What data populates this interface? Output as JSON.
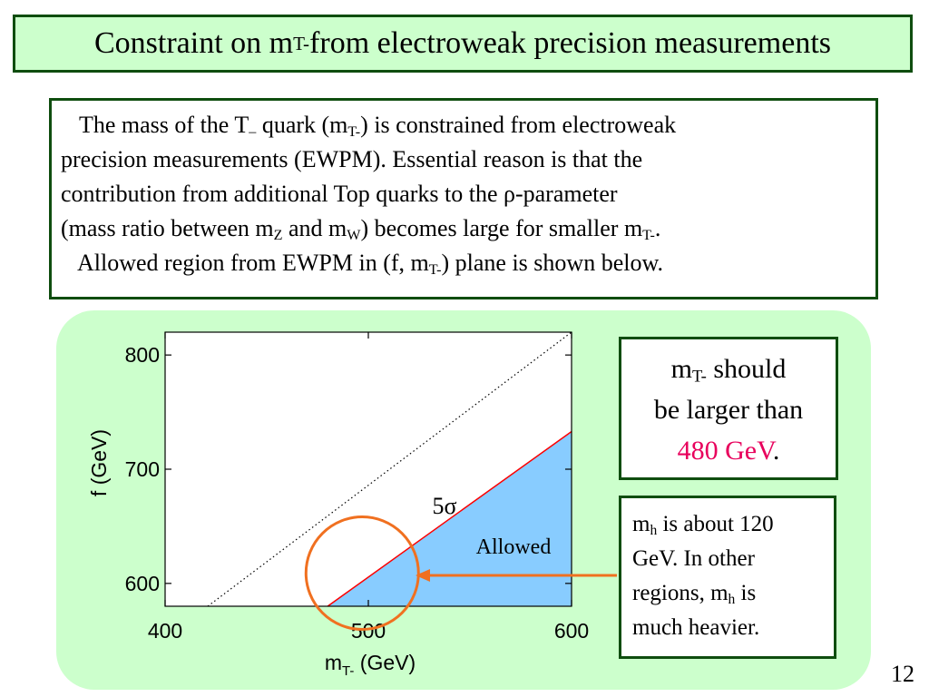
{
  "slide": {
    "title": {
      "pre": "Constraint on m",
      "sub": "T-",
      "post": " from electroweak precision measurements"
    },
    "intro": {
      "l1_a": "The mass of the T",
      "l1_sub1": "–",
      "l1_b": " quark (m",
      "l1_sub2": "T-",
      "l1_c": ") is constrained from electroweak",
      "l2": "precision measurements (EWPM). Essential reason is that the",
      "l3": "contribution from additional Top quarks to the ρ-parameter",
      "l4_a": "(mass ratio between m",
      "l4_sub1": "Z",
      "l4_b": " and m",
      "l4_sub2": "W",
      "l4_c": ") becomes large for smaller m",
      "l4_sub3": "T-",
      "l4_d": ".",
      "l5_a": "Allowed region from EWPM in (f, m",
      "l5_sub": "T-",
      "l5_b": ") plane is shown below."
    },
    "note": {
      "a": "m",
      "sub": "T-",
      "b": " should",
      "line2": "be larger than",
      "accent": "480 GeV",
      "period": "."
    },
    "mh_note": {
      "m": "m",
      "sub1": "h",
      "l1_rest": " is about 120",
      "l2": "GeV. In other",
      "l3_a": "regions,  m",
      "sub2": "h",
      "l3_b": " is",
      "l4": "much heavier."
    },
    "page_number": "12",
    "colors": {
      "title_bg": "#ccffcc",
      "border": "#0f4d0f",
      "allowed_fill": "#88ccff",
      "boundary": "#ff0000",
      "circle": "#f07020",
      "accent_text": "#e8005c"
    }
  },
  "chart_data": {
    "type": "line",
    "xlabel_main": "m",
    "xlabel_sub": "T-",
    "xlabel_unit": "  (GeV)",
    "ylabel": "f (GeV)",
    "xlim": [
      400,
      600
    ],
    "ylim": [
      580,
      820
    ],
    "xticks": [
      400,
      500,
      600
    ],
    "yticks": [
      600,
      700,
      800
    ],
    "series": [
      {
        "role": "diagonal",
        "style": "dotted",
        "x": [
          421,
          600
        ],
        "y": [
          580,
          823
        ]
      },
      {
        "role": "boundary",
        "label": "5σ",
        "x": [
          480,
          600
        ],
        "y": [
          580,
          733
        ]
      }
    ],
    "region_label": "Allowed",
    "circle_center": [
      497,
      609
    ]
  }
}
